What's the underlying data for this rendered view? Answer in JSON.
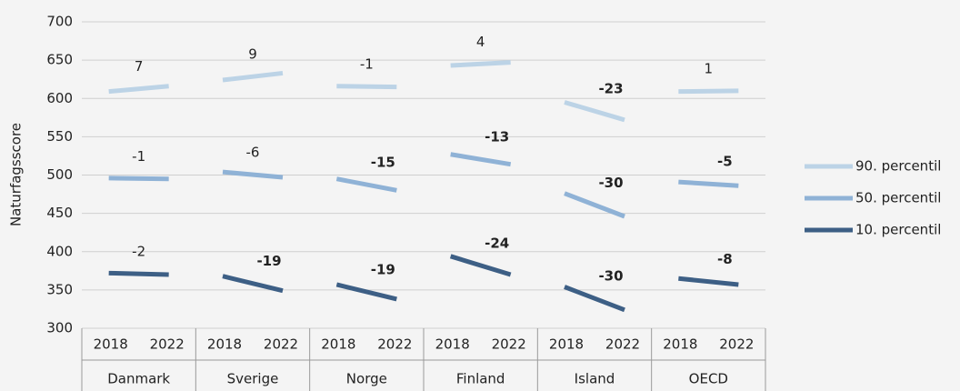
{
  "chart_data": {
    "type": "slope",
    "y_axis_label": "Naturfagsscore",
    "categories": [
      "Danmark",
      "Sverige",
      "Norge",
      "Finland",
      "Island",
      "OECD"
    ],
    "years": [
      "2018",
      "2022"
    ],
    "ylim": [
      300,
      700
    ],
    "yticks": [
      300,
      350,
      400,
      450,
      500,
      550,
      600,
      650,
      700
    ],
    "grid": true,
    "legend_position": "right",
    "series": [
      {
        "name": "90. percentil",
        "color": "#bcd3e6",
        "values": [
          [
            609,
            616
          ],
          [
            624,
            633
          ],
          [
            616,
            615
          ],
          [
            643,
            647
          ],
          [
            595,
            572
          ],
          [
            609,
            610
          ]
        ],
        "changes": [
          7,
          9,
          -1,
          4,
          -23,
          1
        ],
        "significant": [
          false,
          false,
          false,
          false,
          true,
          false
        ]
      },
      {
        "name": "50. percentil",
        "color": "#8fb2d6",
        "values": [
          [
            496,
            495
          ],
          [
            504,
            497
          ],
          [
            495,
            480
          ],
          [
            527,
            514
          ],
          [
            476,
            446
          ],
          [
            491,
            486
          ]
        ],
        "changes": [
          -1,
          -6,
          -15,
          -13,
          -30,
          -5
        ],
        "significant": [
          false,
          false,
          true,
          true,
          true,
          true
        ]
      },
      {
        "name": "10. percentil",
        "color": "#3d5f85",
        "values": [
          [
            372,
            370
          ],
          [
            368,
            349
          ],
          [
            357,
            338
          ],
          [
            394,
            370
          ],
          [
            354,
            324
          ],
          [
            365,
            357
          ]
        ],
        "changes": [
          -2,
          -19,
          -19,
          -24,
          -30,
          -8
        ],
        "significant": [
          false,
          true,
          true,
          true,
          true,
          true
        ]
      }
    ]
  }
}
